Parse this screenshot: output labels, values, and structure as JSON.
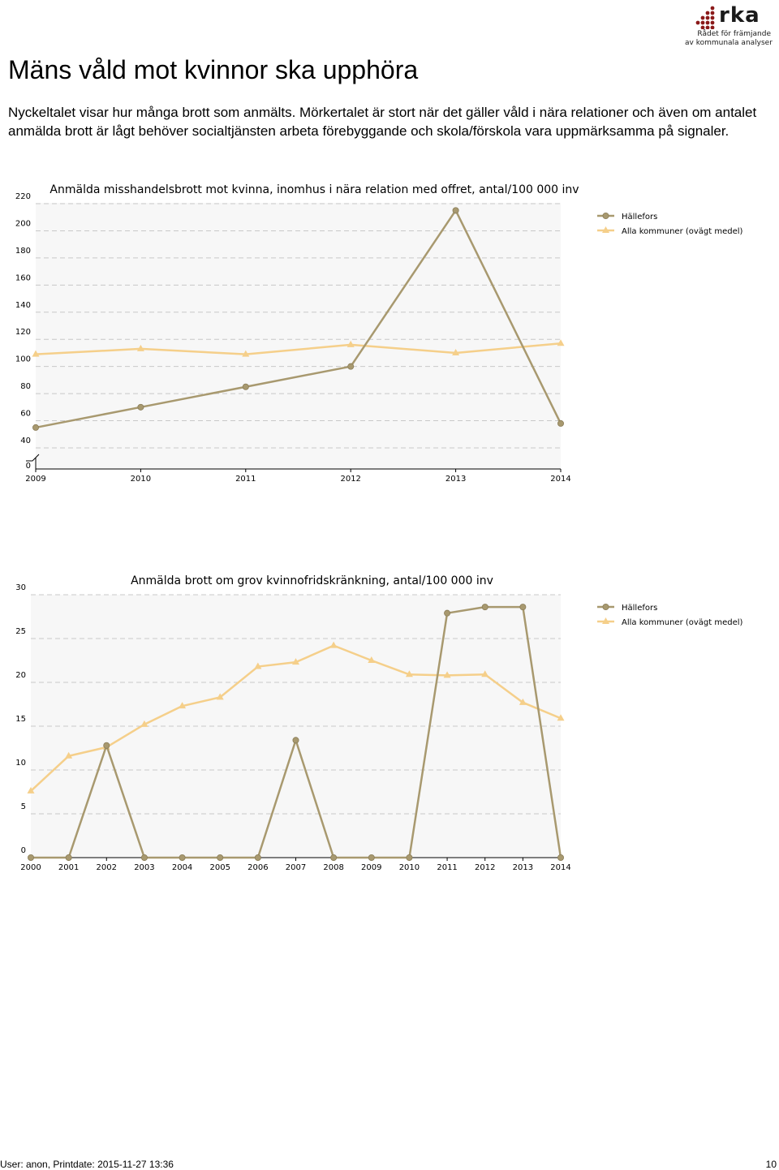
{
  "logo": {
    "text": "rka",
    "tagline_1": "Rådet för främjande",
    "tagline_2": "av kommunala analyser"
  },
  "page_title": "Mäns våld mot kvinnor ska upphöra",
  "intro": "Nyckeltalet visar hur många brott som anmälts. Mörkertalet är stort när det gäller våld i nära relationer och även om antalet anmälda brott är lågt behöver socialtjänsten arbeta förebyggande och skola/förskola vara uppmärksamma på signaler.",
  "colors": {
    "hallefors": "#a8996f",
    "alla": "#f5cf8a",
    "grid": "#c8c8c8",
    "plot_bg": "#f7f7f7"
  },
  "chart_data": [
    {
      "type": "line",
      "title": "Anmälda misshandelsbrott mot kvinna, inomhus i nära relation med offret, antal/100 000 inv",
      "categories": [
        "2009",
        "2010",
        "2011",
        "2012",
        "2013",
        "2014"
      ],
      "y_ticks": [
        "0",
        "40",
        "60",
        "80",
        "100",
        "120",
        "140",
        "160",
        "180",
        "200",
        "220"
      ],
      "ylim": [
        0,
        220
      ],
      "axis_break": true,
      "grid": true,
      "legend_position": "right",
      "series": [
        {
          "name": "Hällefors",
          "marker": "circle",
          "values": [
            55,
            70,
            85,
            100,
            215,
            58
          ]
        },
        {
          "name": "Alla kommuner (ovägt medel)",
          "marker": "triangle",
          "values": [
            109,
            113,
            109,
            116,
            110,
            117
          ]
        }
      ]
    },
    {
      "type": "line",
      "title": "Anmälda brott om grov kvinnofridskränkning, antal/100 000 inv",
      "categories": [
        "2000",
        "2001",
        "2002",
        "2003",
        "2004",
        "2005",
        "2006",
        "2007",
        "2008",
        "2009",
        "2010",
        "2011",
        "2012",
        "2013",
        "2014"
      ],
      "y_ticks": [
        "0",
        "5",
        "10",
        "15",
        "20",
        "25",
        "30"
      ],
      "ylim": [
        0,
        30
      ],
      "grid": true,
      "legend_position": "right",
      "series": [
        {
          "name": "Hällefors",
          "marker": "circle",
          "values": [
            0,
            0,
            12.8,
            0,
            0,
            0,
            0,
            13.4,
            0,
            0,
            0,
            27.9,
            28.6,
            28.6,
            0
          ]
        },
        {
          "name": "Alla kommuner (ovägt medel)",
          "marker": "triangle",
          "values": [
            7.6,
            11.6,
            12.6,
            15.2,
            17.3,
            18.3,
            21.8,
            22.3,
            24.2,
            22.5,
            20.9,
            20.8,
            20.9,
            17.7,
            15.9
          ]
        }
      ]
    }
  ],
  "footer": {
    "left": "User: anon, Printdate: 2015-11-27 13:36",
    "right": "10"
  }
}
